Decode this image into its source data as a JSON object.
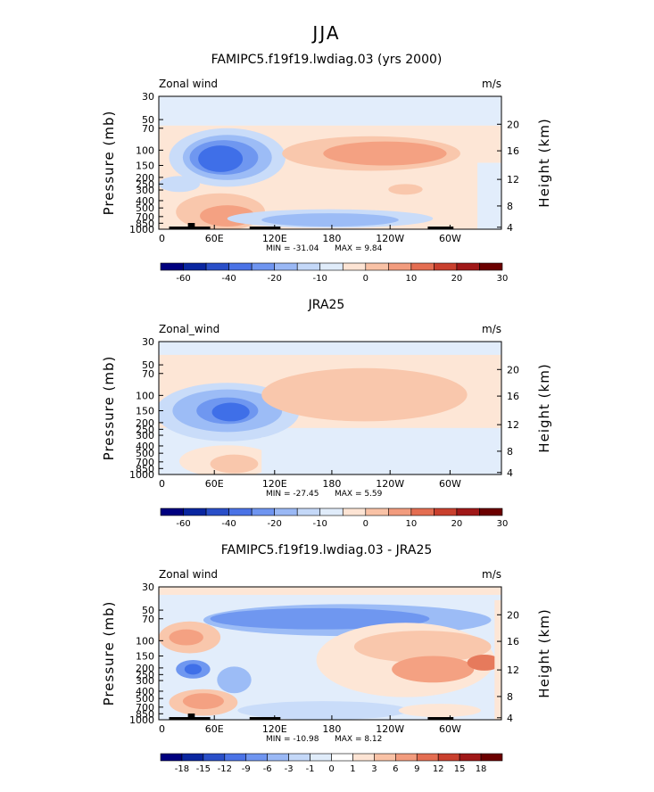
{
  "figure_title": "JJA",
  "colors": {
    "lbar_wind": [
      "#00007f",
      "#0a26a0",
      "#2a4fc8",
      "#4b73e6",
      "#6f95f0",
      "#9ab8f5",
      "#c4d8f8",
      "#e0ecfa",
      "#fde4d4",
      "#f9c2a6",
      "#f29c7e",
      "#e46e52",
      "#c9402e",
      "#a01818",
      "#6b0000"
    ],
    "lbar_diff": [
      "#00007f",
      "#0a26a0",
      "#2a4fc8",
      "#4b73e6",
      "#6f95f0",
      "#9ab8f5",
      "#c4d8f8",
      "#e0ecfa",
      "#ffffff",
      "#fde4d4",
      "#f9c2a6",
      "#f29c7e",
      "#e46e52",
      "#c9402e",
      "#a01818",
      "#6b0000"
    ]
  },
  "chart_data": [
    {
      "type": "heatmap",
      "title": "FAMIPC5.f19f19.lwdiag.03 (yrs 2000)",
      "left_label": "Zonal wind",
      "units": "m/s",
      "xlabel": "",
      "ylabel": "Pressure (mb)",
      "ylabel_right": "Height (km)",
      "x_ticks": [
        "0",
        "60E",
        "120E",
        "180",
        "120W",
        "60W"
      ],
      "y_ticks": [
        "30",
        "50",
        "70",
        "100",
        "150",
        "200",
        "250",
        "300",
        "400",
        "500",
        "700",
        "850",
        "1000"
      ],
      "y_ticks_right": [
        "20",
        "16",
        "12",
        "8",
        "4"
      ],
      "min_text": "MIN = -31.04",
      "max_text": "MAX =   9.84",
      "levels": [
        -60,
        -40,
        -20,
        -10,
        0,
        10,
        20,
        30
      ],
      "level_labels": [
        "-60",
        "-40",
        "-20",
        "-10",
        "0",
        "10",
        "20",
        "30"
      ],
      "min": -31.04,
      "max": 9.84
    },
    {
      "type": "heatmap",
      "title": "JRA25",
      "left_label": "Zonal_wind",
      "units": "m/s",
      "xlabel": "",
      "ylabel": "Pressure (mb)",
      "ylabel_right": "Height (km)",
      "x_ticks": [
        "0",
        "60E",
        "120E",
        "180",
        "120W",
        "60W"
      ],
      "y_ticks": [
        "30",
        "50",
        "70",
        "100",
        "150",
        "200",
        "250",
        "300",
        "400",
        "500",
        "700",
        "850",
        "1000"
      ],
      "y_ticks_right": [
        "20",
        "16",
        "12",
        "8",
        "4"
      ],
      "min_text": "MIN = -27.45",
      "max_text": "MAX =   5.59",
      "levels": [
        -60,
        -40,
        -20,
        -10,
        0,
        10,
        20,
        30
      ],
      "level_labels": [
        "-60",
        "-40",
        "-20",
        "-10",
        "0",
        "10",
        "20",
        "30"
      ],
      "min": -27.45,
      "max": 5.59
    },
    {
      "type": "heatmap",
      "title": "FAMIPC5.f19f19.lwdiag.03 - JRA25",
      "left_label": "Zonal wind",
      "units": "m/s",
      "xlabel": "",
      "ylabel": "Pressure (mb)",
      "ylabel_right": "Height (km)",
      "x_ticks": [
        "0",
        "60E",
        "120E",
        "180",
        "120W",
        "60W"
      ],
      "y_ticks": [
        "30",
        "50",
        "70",
        "100",
        "150",
        "200",
        "250",
        "300",
        "400",
        "500",
        "700",
        "850",
        "1000"
      ],
      "y_ticks_right": [
        "20",
        "16",
        "12",
        "8",
        "4"
      ],
      "min_text": "MIN = -10.98",
      "max_text": "MAX =   8.12",
      "levels": [
        -18,
        -15,
        -12,
        -9,
        -6,
        -3,
        -1,
        0,
        1,
        3,
        6,
        9,
        12,
        15,
        18
      ],
      "level_labels": [
        "-18",
        "-15",
        "-12",
        "-9",
        "-6",
        "-3",
        "-1",
        "0",
        "1",
        "3",
        "6",
        "9",
        "12",
        "15",
        "18"
      ],
      "min": -10.98,
      "max": 8.12
    }
  ]
}
